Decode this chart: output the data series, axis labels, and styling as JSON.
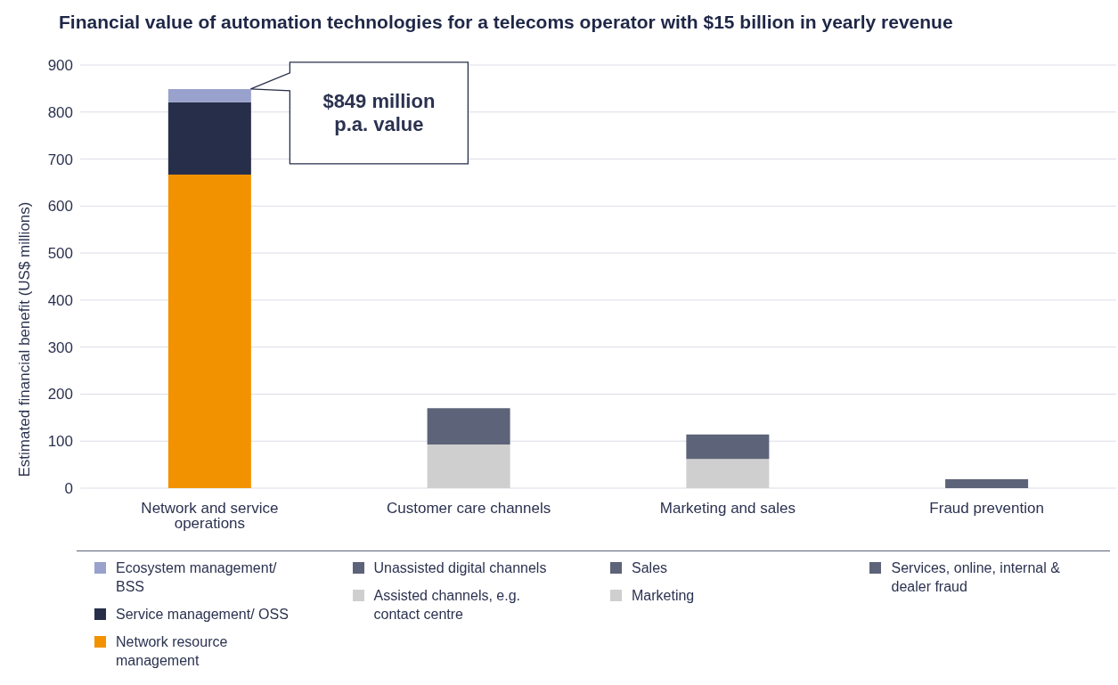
{
  "chart_data": {
    "type": "bar",
    "title": "Financial value of automation technologies for a telecoms operator with $15 billion in yearly revenue",
    "ylabel": "Estimated financial benefit (US$ millions)",
    "categories": [
      "Network and service operations",
      "Customer care channels",
      "Marketing and sales",
      "Fraud prevention"
    ],
    "stacked": true,
    "ylim": [
      0,
      900
    ],
    "yticks": [
      0,
      100,
      200,
      300,
      400,
      500,
      600,
      700,
      800,
      900
    ],
    "grid": "y",
    "legend": "bottom",
    "annotations": [
      "$849 million p.a. value"
    ],
    "series": [
      {
        "name": "Network resource management",
        "color": "#f39200",
        "values": [
          667,
          null,
          null,
          null
        ]
      },
      {
        "name": "Service management/ OSS",
        "color": "#272e4a",
        "values": [
          154,
          null,
          null,
          null
        ]
      },
      {
        "name": "Ecosystem management/ BSS",
        "color": "#98a2cc",
        "values": [
          28,
          null,
          null,
          null
        ]
      },
      {
        "name": "Assisted channels, e.g. contact centre",
        "color": "#d0cfcf",
        "values": [
          null,
          93,
          null,
          null
        ]
      },
      {
        "name": "Unassisted digital channels",
        "color": "#5d6378",
        "values": [
          null,
          77,
          null,
          null
        ]
      },
      {
        "name": "Marketing",
        "color": "#d0cfcf",
        "values": [
          null,
          null,
          62,
          null
        ]
      },
      {
        "name": "Sales",
        "color": "#5d6378",
        "values": [
          null,
          null,
          52,
          null
        ]
      },
      {
        "name": "Services, online, internal & dealer fraud",
        "color": "#5d6378",
        "values": [
          null,
          null,
          null,
          19
        ]
      }
    ]
  }
}
